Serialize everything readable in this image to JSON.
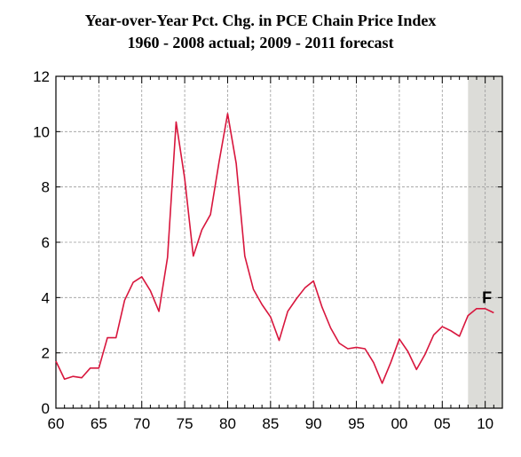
{
  "chart_data": {
    "type": "line",
    "title": "Year-over-Year Pct. Chg. in PCE Chain Price Index",
    "subtitle": "1960 - 2008 actual; 2009 - 2011 forecast",
    "xlabel": "",
    "ylabel": "",
    "xlim": [
      1960,
      2012
    ],
    "ylim": [
      0,
      12
    ],
    "x_tick_values": [
      1960,
      1965,
      1970,
      1975,
      1980,
      1985,
      1990,
      1995,
      2000,
      2005,
      2010
    ],
    "x_tick_labels": [
      "60",
      "65",
      "70",
      "75",
      "80",
      "85",
      "90",
      "95",
      "00",
      "05",
      "10"
    ],
    "y_tick_values": [
      0,
      2,
      4,
      6,
      8,
      10,
      12
    ],
    "y_tick_labels": [
      "0",
      "2",
      "4",
      "6",
      "8",
      "10",
      "12"
    ],
    "grid": true,
    "forecast_region": {
      "start": 2008,
      "end": 2012,
      "label": "F",
      "label_x": 2010.2,
      "label_y": 4.0
    },
    "series": [
      {
        "color": "#d8163d",
        "x": [
          1960,
          1961,
          1962,
          1963,
          1964,
          1965,
          1966,
          1967,
          1968,
          1969,
          1970,
          1971,
          1972,
          1973,
          1974,
          1975,
          1976,
          1977,
          1978,
          1979,
          1980,
          1981,
          1982,
          1983,
          1984,
          1985,
          1986,
          1987,
          1988,
          1989,
          1990,
          1991,
          1992,
          1993,
          1994,
          1995,
          1996,
          1997,
          1998,
          1999,
          2000,
          2001,
          2002,
          2003,
          2004,
          2005,
          2006,
          2007,
          2008,
          2009,
          2010,
          2011
        ],
        "y": [
          1.7,
          1.05,
          1.15,
          1.1,
          1.45,
          1.45,
          2.55,
          2.55,
          3.9,
          4.55,
          4.75,
          4.25,
          3.5,
          5.45,
          10.35,
          8.3,
          5.5,
          6.45,
          7.0,
          8.9,
          10.65,
          8.85,
          5.5,
          4.3,
          3.75,
          3.3,
          2.45,
          3.5,
          3.95,
          4.35,
          4.6,
          3.65,
          2.9,
          2.35,
          2.15,
          2.2,
          2.15,
          1.65,
          0.9,
          1.65,
          2.5,
          2.05,
          1.4,
          1.95,
          2.65,
          2.95,
          2.8,
          2.6,
          3.35,
          3.6,
          3.6,
          3.45
        ]
      }
    ]
  }
}
